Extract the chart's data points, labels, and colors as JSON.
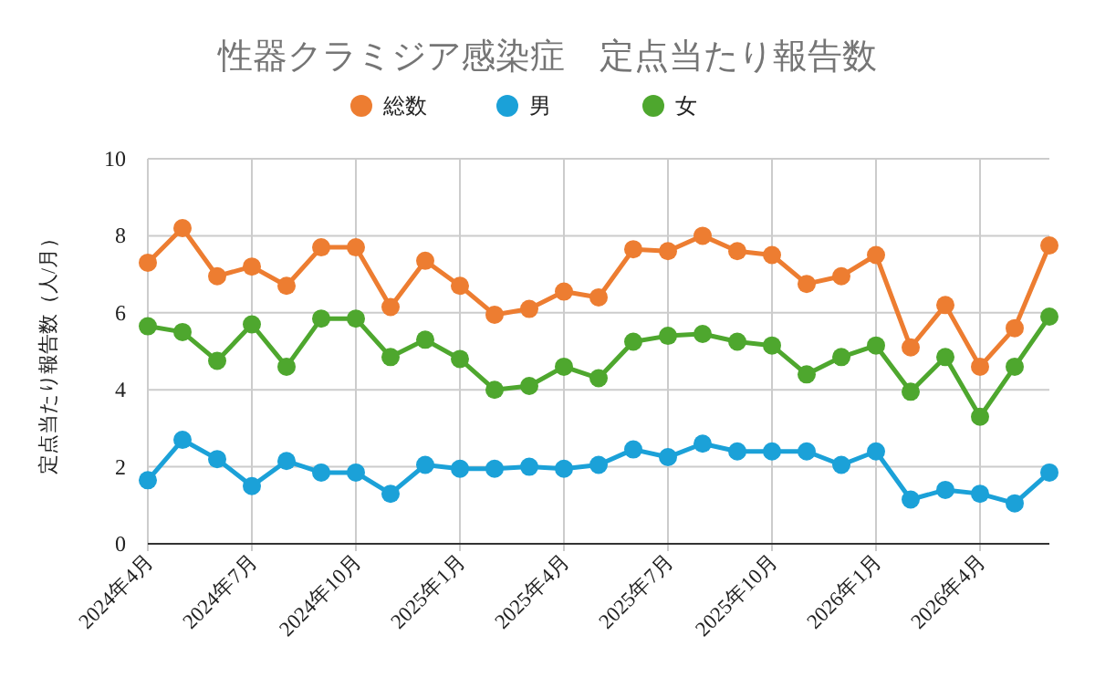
{
  "chart_data": {
    "type": "line",
    "title": "性器クラミジア感染症　定点当たり報告数",
    "ylabel": "定点当たり報告数（人/月）",
    "x": [
      "2024-04",
      "2024-05",
      "2024-06",
      "2024-07",
      "2024-08",
      "2024-09",
      "2024-10",
      "2024-11",
      "2024-12",
      "2025-01",
      "2025-02",
      "2025-03",
      "2025-04",
      "2025-05",
      "2025-06",
      "2025-07",
      "2025-08",
      "2025-09",
      "2025-10",
      "2025-11",
      "2025-12",
      "2026-01",
      "2026-02",
      "2026-03",
      "2026-04",
      "2026-05",
      "2026-06"
    ],
    "series": [
      {
        "name": "総数",
        "color": "#ed7d31",
        "values": [
          7.3,
          8.2,
          6.95,
          7.2,
          6.7,
          7.7,
          7.7,
          6.15,
          7.35,
          6.7,
          5.95,
          6.1,
          6.55,
          6.4,
          7.65,
          7.6,
          8.0,
          7.6,
          7.5,
          6.75,
          6.95,
          7.5,
          5.1,
          6.2,
          4.6,
          5.6,
          7.75
        ]
      },
      {
        "name": "男",
        "color": "#1ba1d8",
        "values": [
          1.65,
          2.7,
          2.2,
          1.5,
          2.15,
          1.85,
          1.85,
          1.3,
          2.05,
          1.95,
          1.95,
          2.0,
          1.95,
          2.05,
          2.45,
          2.25,
          2.6,
          2.4,
          2.4,
          2.4,
          2.05,
          2.4,
          1.15,
          1.4,
          1.3,
          1.05,
          1.85
        ]
      },
      {
        "name": "女",
        "color": "#4ea72e",
        "values": [
          5.65,
          5.5,
          4.75,
          5.7,
          4.6,
          5.85,
          5.85,
          4.85,
          5.3,
          4.8,
          4.0,
          4.1,
          4.6,
          4.3,
          5.25,
          5.4,
          5.45,
          5.25,
          5.15,
          4.4,
          4.85,
          5.15,
          3.95,
          4.85,
          3.3,
          4.6,
          5.9
        ]
      }
    ],
    "xlim": [
      "2024-04",
      "2026-06"
    ],
    "xticks": [
      {
        "value": "2024-04",
        "label": "2024年4月"
      },
      {
        "value": "2024-07",
        "label": "2024年7月"
      },
      {
        "value": "2024-10",
        "label": "2024年10月"
      },
      {
        "value": "2025-01",
        "label": "2025年1月"
      },
      {
        "value": "2025-04",
        "label": "2025年4月"
      },
      {
        "value": "2025-07",
        "label": "2025年7月"
      },
      {
        "value": "2025-10",
        "label": "2025年10月"
      },
      {
        "value": "2026-01",
        "label": "2026年1月"
      },
      {
        "value": "2026-04",
        "label": "2026年4月"
      }
    ],
    "ylim": [
      0,
      10
    ],
    "yticks": [
      0,
      2,
      4,
      6,
      8,
      10
    ],
    "grid": true,
    "legend": "top",
    "marker": "circle",
    "line_style": "solid"
  }
}
